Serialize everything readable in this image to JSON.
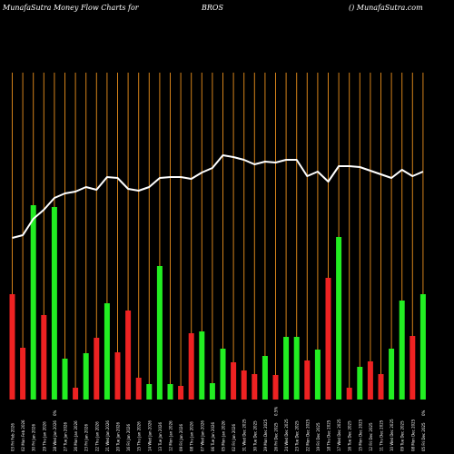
{
  "header": {
    "left": "MunafaSutra  Money Flow  Charts for",
    "ticker": "BROS",
    "right": "() MunafaSutra.com"
  },
  "colors": {
    "background": "#000000",
    "grid": "#d4821a",
    "up": "#22ee22",
    "down": "#ee2222",
    "line": "#ffffff",
    "label": "#ffffff"
  },
  "chart_data": {
    "type": "bar",
    "categories": [
      "03 Fri Feb 2026",
      "02 Mon Feb 2026",
      "30 Fri Jan 2026",
      "29 Thu Jan 2026",
      "28 Wed Jan 2026",
      "27 Tue Jan 2026",
      "26 Mon Jan 2026",
      "23 Fri Jan 2026",
      "22 Thu Jan 2026",
      "21 Wed Jan 2026",
      "20 Tue Jan 2026",
      "16 Fri Jan 2026",
      "15 Thu Jan 2026",
      "14 Wed Jan 2026",
      "13 Tue Jan 2026",
      "12 Mon Jan 2026",
      "09 Fri Jan 2026",
      "08 Thu Jan 2026",
      "07 Wed Jan 2026",
      "06 Tue Jan 2026",
      "05 Mon Jan 2026",
      "02 Fri Jan 2026",
      "31 Wed Dec 2025",
      "30 Tue Dec 2025",
      "29 Mon Dec 2025",
      "26 Fri Dec 2025",
      "24 Wed Dec 2025",
      "23 Tue Dec 2025",
      "22 Mon Dec 2025",
      "19 Fri Dec 2025",
      "18 Thu Dec 2025",
      "17 Wed Dec 2025",
      "16 Tue Dec 2025",
      "15 Mon Dec 2025",
      "12 Fri Dec 2025",
      "11 Thu Dec 2025",
      "10 Wed Dec 2025",
      "09 Tue Dec 2025",
      "08 Mon Dec 2025",
      "05 Fri Dec 2025"
    ],
    "x_labels": [
      "03 Fri Feb 2026",
      "02 Mon Feb 2026",
      "30 Fri Jan 2026",
      "29 Thu Jan 2026",
      "28 Wed Jan 2026",
      "27 Tue Jan 2026",
      "26 Mon Jan 2026",
      "23 Fri Jan 2026",
      "22 Thu Jan 2026",
      "21 Wed Jan 2026",
      "20 Tue Jan 2026",
      "16 Fri Jan 2026",
      "15 Thu Jan 2026",
      "14 Wed Jan 2026",
      "13 Tue Jan 2026",
      "12 Mon Jan 2026",
      "09 Fri Jan 2026",
      "08 Thu Jan 2026",
      "07 Wed Jan 2026",
      "06 Tue Jan 2026",
      "05 Mon Jan 2026",
      "02 Fri Jan 2026",
      "31 Wed Dec 2025",
      "30 Tue Dec 2025",
      "29 Mon Dec 2025",
      "26 Fri Dec 2025",
      "24 Wed Dec 2025",
      "23 Tue Dec 2025",
      "22 Mon Dec 2025",
      "19 Fri Dec 2025",
      "18 Thu Dec 2025",
      "17 Wed Dec 2025",
      "16 Tue Dec 2025",
      "15 Mon Dec 2025",
      "12 Fri Dec 2025",
      "11 Thu Dec 2025",
      "10 Wed Dec 2025",
      "09 Tue Dec 2025",
      "08 Mon Dec 2025",
      "05 Fri Dec 2025"
    ],
    "bars": [
      {
        "value": 116,
        "color": "red"
      },
      {
        "value": 57,
        "color": "red"
      },
      {
        "value": 214,
        "color": "green"
      },
      {
        "value": 93,
        "color": "red"
      },
      {
        "value": 212,
        "color": "green"
      },
      {
        "value": 45,
        "color": "green"
      },
      {
        "value": 13,
        "color": "red"
      },
      {
        "value": 51,
        "color": "green"
      },
      {
        "value": 68,
        "color": "red"
      },
      {
        "value": 106,
        "color": "green"
      },
      {
        "value": 52,
        "color": "red"
      },
      {
        "value": 98,
        "color": "red"
      },
      {
        "value": 24,
        "color": "red"
      },
      {
        "value": 17,
        "color": "green"
      },
      {
        "value": 147,
        "color": "green"
      },
      {
        "value": 17,
        "color": "green"
      },
      {
        "value": 15,
        "color": "red"
      },
      {
        "value": 73,
        "color": "red"
      },
      {
        "value": 75,
        "color": "green"
      },
      {
        "value": 18,
        "color": "green"
      },
      {
        "value": 56,
        "color": "green"
      },
      {
        "value": 41,
        "color": "red"
      },
      {
        "value": 32,
        "color": "red"
      },
      {
        "value": 28,
        "color": "red"
      },
      {
        "value": 48,
        "color": "green"
      },
      {
        "value": 27,
        "color": "red"
      },
      {
        "value": 69,
        "color": "green"
      },
      {
        "value": 69,
        "color": "green"
      },
      {
        "value": 43,
        "color": "red"
      },
      {
        "value": 55,
        "color": "green"
      },
      {
        "value": 134,
        "color": "red"
      },
      {
        "value": 179,
        "color": "green"
      },
      {
        "value": 13,
        "color": "red"
      },
      {
        "value": 36,
        "color": "green"
      },
      {
        "value": 42,
        "color": "red"
      },
      {
        "value": 28,
        "color": "red"
      },
      {
        "value": 56,
        "color": "green"
      },
      {
        "value": 109,
        "color": "green"
      },
      {
        "value": 70,
        "color": "red"
      },
      {
        "value": 116,
        "color": "green"
      }
    ],
    "line": [
      178,
      181,
      199,
      209,
      222,
      227,
      229,
      234,
      231,
      245,
      244,
      232,
      230,
      234,
      244,
      245,
      245,
      243,
      250,
      255,
      269,
      267,
      264,
      259,
      262,
      261,
      264,
      264,
      246,
      251,
      240,
      257,
      257,
      256,
      252,
      248,
      244,
      253,
      246,
      251
    ],
    "ylim": [
      0,
      360
    ],
    "annotations": [
      {
        "index": 4,
        "text": "0%"
      },
      {
        "index": 25,
        "text": "0.5%"
      },
      {
        "index": 39,
        "text": "0%"
      }
    ]
  }
}
